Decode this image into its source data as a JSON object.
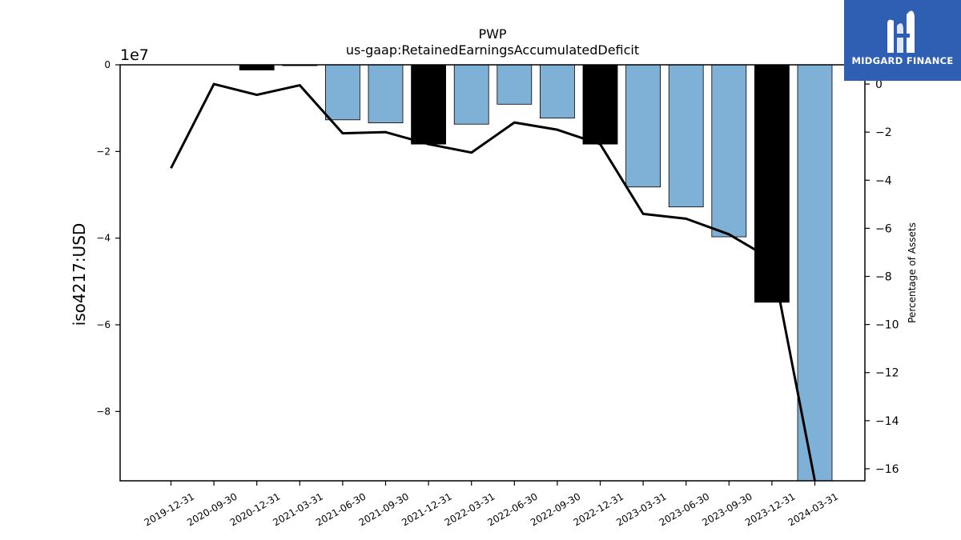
{
  "chart_data": {
    "type": "bar",
    "title": "PWP",
    "subtitle": "us-gaap:RetainedEarningsAccumulatedDeficit",
    "ylabel": "iso4217:USD",
    "y_offset_text": "1e7",
    "y2label": "Percentage of Assets",
    "categories": [
      "2019-12-31",
      "2020-09-30",
      "2020-12-31",
      "2021-03-31",
      "2021-06-30",
      "2021-09-30",
      "2021-12-31",
      "2022-03-31",
      "2022-06-30",
      "2022-09-30",
      "2022-12-31",
      "2023-03-31",
      "2023-06-30",
      "2023-09-30",
      "2023-12-31",
      "2024-03-31"
    ],
    "series": [
      {
        "kind": "bar",
        "values": [
          0,
          0,
          -1200000,
          -200000,
          -12700000,
          -13400000,
          -18300000,
          -13700000,
          -9100000,
          -12300000,
          -18300000,
          -28200000,
          -32800000,
          -39700000,
          -54800000,
          -96000000
        ],
        "colors": [
          "#7fb0d5",
          "#7fb0d5",
          "#000000",
          "#000000",
          "#7fb0d5",
          "#7fb0d5",
          "#000000",
          "#7fb0d5",
          "#7fb0d5",
          "#7fb0d5",
          "#000000",
          "#7fb0d5",
          "#7fb0d5",
          "#7fb0d5",
          "#000000",
          "#7fb0d5"
        ]
      },
      {
        "kind": "line",
        "axis": "right",
        "values": [
          -3.5,
          0.0,
          -0.45,
          -0.05,
          -2.05,
          -2.0,
          -2.5,
          -2.85,
          -1.6,
          -1.9,
          -2.5,
          -5.4,
          -5.6,
          -6.25,
          -7.3,
          -16.5
        ]
      }
    ],
    "yticks": [
      0,
      -20000000,
      -40000000,
      -60000000,
      -80000000
    ],
    "yticklabels": [
      "0",
      "−2",
      "−4",
      "−6",
      "−8"
    ],
    "ylim": [
      -96000000,
      0
    ],
    "y2ticks": [
      0,
      -2,
      -4,
      -6,
      -8,
      -10,
      -12,
      -14,
      -16
    ],
    "y2ticklabels": [
      "0",
      "−2",
      "−4",
      "−6",
      "−8",
      "−10",
      "−12",
      "−14",
      "−16"
    ],
    "y2lim": [
      -16.5,
      0.8
    ],
    "colors": {
      "bar": "#7fb0d5",
      "highlight_bar": "#000000",
      "line": "#000000"
    },
    "grid": false
  },
  "logo": {
    "text": "MIDGARD FINANCE",
    "background": "#2f5fb3"
  }
}
